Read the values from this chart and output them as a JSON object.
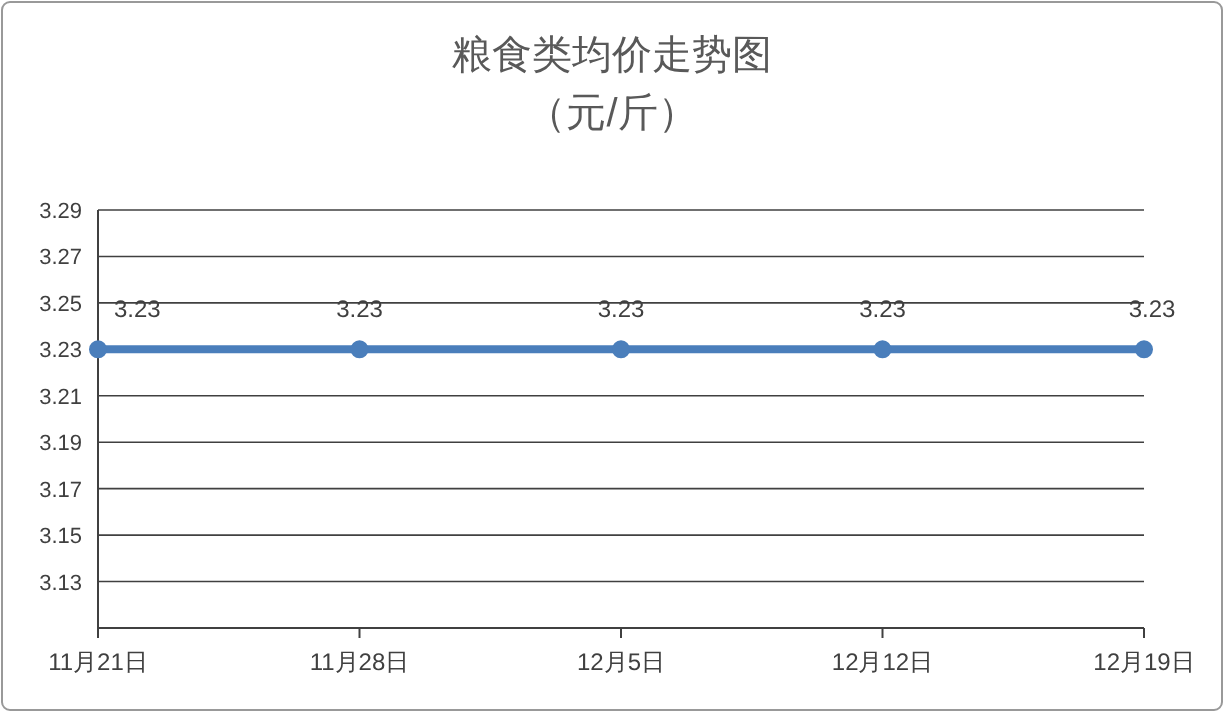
{
  "chart_data": {
    "type": "line",
    "title": "粮食类均价走势图",
    "subtitle": "（元/斤）",
    "categories": [
      "11月21日",
      "11月28日",
      "12月5日",
      "12月12日",
      "12月19日"
    ],
    "series": [
      {
        "color": "#4a7ebb",
        "values": [
          3.23,
          3.23,
          3.23,
          3.23,
          3.23
        ]
      }
    ],
    "ylim": [
      3.11,
      3.29
    ],
    "yticks": [
      {
        "value": 3.11,
        "label": null
      },
      3.13,
      3.15,
      3.17,
      3.19,
      3.21,
      3.23,
      3.25,
      3.27,
      3.29
    ],
    "grid": "y",
    "marker": "circle",
    "line_style": "solid",
    "data_labels": true
  }
}
